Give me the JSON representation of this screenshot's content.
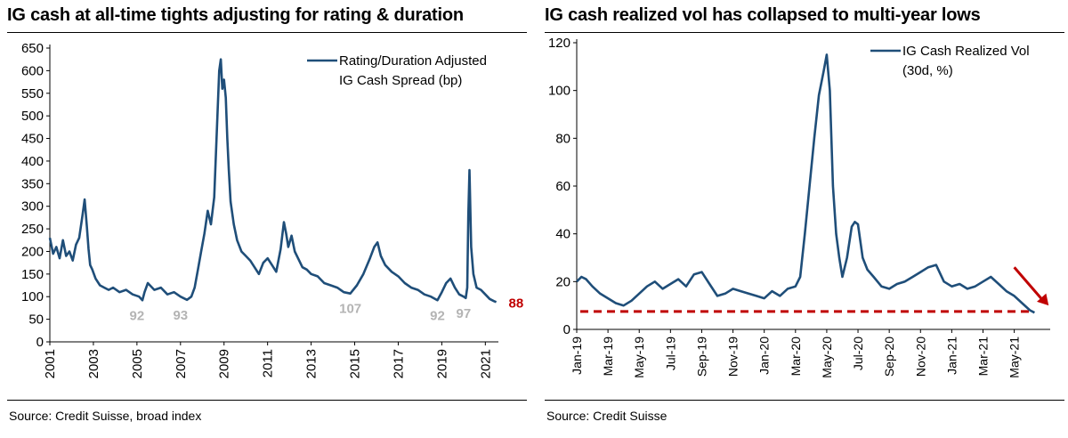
{
  "colors": {
    "series": "#1f4e79",
    "callout_gray": "#b4b4b4",
    "accent_red": "#c00000",
    "dash_red": "#c00000"
  },
  "chart_data": [
    {
      "type": "line",
      "title": "IG cash at all-time tights adjusting for rating & duration",
      "source": "Source: Credit Suisse, broad index",
      "legend": [
        "Rating/Duration Adjusted",
        "IG Cash Spread (bp)"
      ],
      "legend_position": "top-right",
      "xlabel": "",
      "ylabel": "",
      "xlim": [
        2001,
        2021.6
      ],
      "ylim": [
        0,
        650
      ],
      "yticks": [
        "0",
        "50",
        "100",
        "150",
        "200",
        "250",
        "300",
        "350",
        "400",
        "450",
        "500",
        "550",
        "600",
        "650"
      ],
      "xtick_values": [
        2001,
        2003,
        2005,
        2007,
        2009,
        2011,
        2013,
        2015,
        2017,
        2019,
        2021
      ],
      "xticks": [
        "2001",
        "2003",
        "2005",
        "2007",
        "2009",
        "2011",
        "2013",
        "2015",
        "2017",
        "2019",
        "2021"
      ],
      "series": [
        {
          "name": "Rating/Duration Adjusted IG Cash Spread (bp)",
          "x": [
            2001.0,
            2001.15,
            2001.3,
            2001.45,
            2001.6,
            2001.75,
            2001.9,
            2002.05,
            2002.2,
            2002.35,
            2002.5,
            2002.6,
            2002.7,
            2002.78,
            2002.85,
            2002.95,
            2003.1,
            2003.3,
            2003.5,
            2003.7,
            2003.9,
            2004.2,
            2004.5,
            2004.8,
            2005.1,
            2005.25,
            2005.35,
            2005.5,
            2005.8,
            2006.1,
            2006.4,
            2006.7,
            2007.0,
            2007.3,
            2007.5,
            2007.65,
            2007.8,
            2007.95,
            2008.1,
            2008.25,
            2008.4,
            2008.55,
            2008.68,
            2008.78,
            2008.85,
            2008.92,
            2009.0,
            2009.08,
            2009.15,
            2009.22,
            2009.3,
            2009.45,
            2009.6,
            2009.8,
            2010.0,
            2010.2,
            2010.4,
            2010.6,
            2010.8,
            2011.0,
            2011.2,
            2011.4,
            2011.6,
            2011.75,
            2011.85,
            2011.95,
            2012.1,
            2012.25,
            2012.45,
            2012.6,
            2012.8,
            2013.0,
            2013.3,
            2013.6,
            2013.9,
            2014.2,
            2014.5,
            2014.8,
            2015.1,
            2015.4,
            2015.7,
            2015.9,
            2016.05,
            2016.2,
            2016.4,
            2016.7,
            2017.0,
            2017.3,
            2017.6,
            2017.9,
            2018.2,
            2018.5,
            2018.8,
            2019.0,
            2019.2,
            2019.4,
            2019.6,
            2019.8,
            2020.0,
            2020.1,
            2020.17,
            2020.22,
            2020.27,
            2020.35,
            2020.45,
            2020.6,
            2020.8,
            2021.0,
            2021.2,
            2021.4,
            2021.5
          ],
          "values": [
            230,
            195,
            210,
            185,
            225,
            190,
            200,
            180,
            215,
            230,
            280,
            315,
            255,
            205,
            170,
            160,
            140,
            125,
            120,
            115,
            120,
            110,
            115,
            105,
            100,
            92,
            110,
            130,
            115,
            120,
            105,
            110,
            100,
            93,
            100,
            120,
            160,
            200,
            240,
            290,
            260,
            320,
            480,
            600,
            625,
            560,
            580,
            540,
            450,
            380,
            310,
            260,
            225,
            200,
            190,
            180,
            165,
            150,
            175,
            185,
            170,
            155,
            205,
            265,
            240,
            210,
            235,
            200,
            180,
            165,
            160,
            150,
            145,
            130,
            125,
            120,
            110,
            107,
            125,
            150,
            185,
            210,
            220,
            190,
            170,
            155,
            145,
            130,
            120,
            115,
            105,
            100,
            92,
            110,
            130,
            140,
            120,
            105,
            100,
            97,
            120,
            280,
            380,
            210,
            150,
            120,
            115,
            105,
            95,
            90,
            88
          ]
        }
      ],
      "annotations": [
        {
          "label": "92",
          "x": 2005.0,
          "y": 92,
          "color": "gray"
        },
        {
          "label": "93",
          "x": 2007.0,
          "y": 93,
          "color": "gray"
        },
        {
          "label": "107",
          "x": 2014.8,
          "y": 107,
          "color": "gray"
        },
        {
          "label": "92",
          "x": 2018.8,
          "y": 92,
          "color": "gray"
        },
        {
          "label": "97",
          "x": 2020.0,
          "y": 97,
          "color": "gray"
        },
        {
          "label": "88",
          "x": 2021.5,
          "y": 88,
          "color": "red"
        }
      ]
    },
    {
      "type": "line",
      "title": "IG cash realized vol has collapsed to multi-year lows",
      "source": "Source: Credit Suisse",
      "legend": [
        "IG Cash Realized Vol",
        "(30d, %)"
      ],
      "legend_position": "top-right",
      "xlabel": "",
      "ylabel": "",
      "xlim": [
        0,
        30.3
      ],
      "ylim": [
        0,
        120
      ],
      "yticks": [
        "0",
        "20",
        "40",
        "60",
        "80",
        "100",
        "120"
      ],
      "xtick_values": [
        0,
        2,
        4,
        6,
        8,
        10,
        12,
        14,
        16,
        18,
        20,
        22,
        24,
        26,
        28
      ],
      "xticks": [
        "Jan-19",
        "Mar-19",
        "May-19",
        "Jul-19",
        "Sep-19",
        "Nov-19",
        "Jan-20",
        "Mar-20",
        "May-20",
        "Jul-20",
        "Sep-20",
        "Nov-20",
        "Jan-21",
        "Mar-21",
        "May-21"
      ],
      "series": [
        {
          "name": "IG Cash Realized Vol (30d, %)",
          "x": [
            0,
            0.3,
            0.6,
            1.0,
            1.5,
            2.0,
            2.5,
            3.0,
            3.5,
            4.0,
            4.5,
            5.0,
            5.5,
            6.0,
            6.5,
            7.0,
            7.5,
            8.0,
            8.5,
            9.0,
            9.5,
            10.0,
            10.5,
            11.0,
            11.5,
            12.0,
            12.5,
            13.0,
            13.5,
            14.0,
            14.3,
            14.6,
            14.9,
            15.2,
            15.5,
            15.8,
            16.0,
            16.2,
            16.4,
            16.6,
            16.8,
            17.0,
            17.3,
            17.6,
            17.8,
            18.0,
            18.3,
            18.6,
            19.0,
            19.5,
            20.0,
            20.5,
            21.0,
            21.5,
            22.0,
            22.5,
            23.0,
            23.5,
            24.0,
            24.5,
            25.0,
            25.5,
            26.0,
            26.5,
            27.0,
            27.5,
            28.0,
            28.5,
            29.0,
            29.3
          ],
          "values": [
            20,
            22,
            21,
            18,
            15,
            13,
            11,
            10,
            12,
            15,
            18,
            20,
            17,
            19,
            21,
            18,
            23,
            24,
            19,
            14,
            15,
            17,
            16,
            15,
            14,
            13,
            16,
            14,
            17,
            18,
            22,
            40,
            60,
            80,
            98,
            108,
            115,
            100,
            60,
            40,
            30,
            22,
            30,
            43,
            45,
            44,
            30,
            25,
            22,
            18,
            17,
            19,
            20,
            22,
            24,
            26,
            27,
            20,
            18,
            19,
            17,
            18,
            20,
            22,
            19,
            16,
            14,
            11,
            8,
            7
          ]
        }
      ],
      "reference_line": {
        "y": 7.5,
        "style": "dashed",
        "color": "red"
      },
      "arrow": {
        "from": [
          28.0,
          26
        ],
        "to": [
          30.2,
          10
        ],
        "color": "red"
      }
    }
  ]
}
